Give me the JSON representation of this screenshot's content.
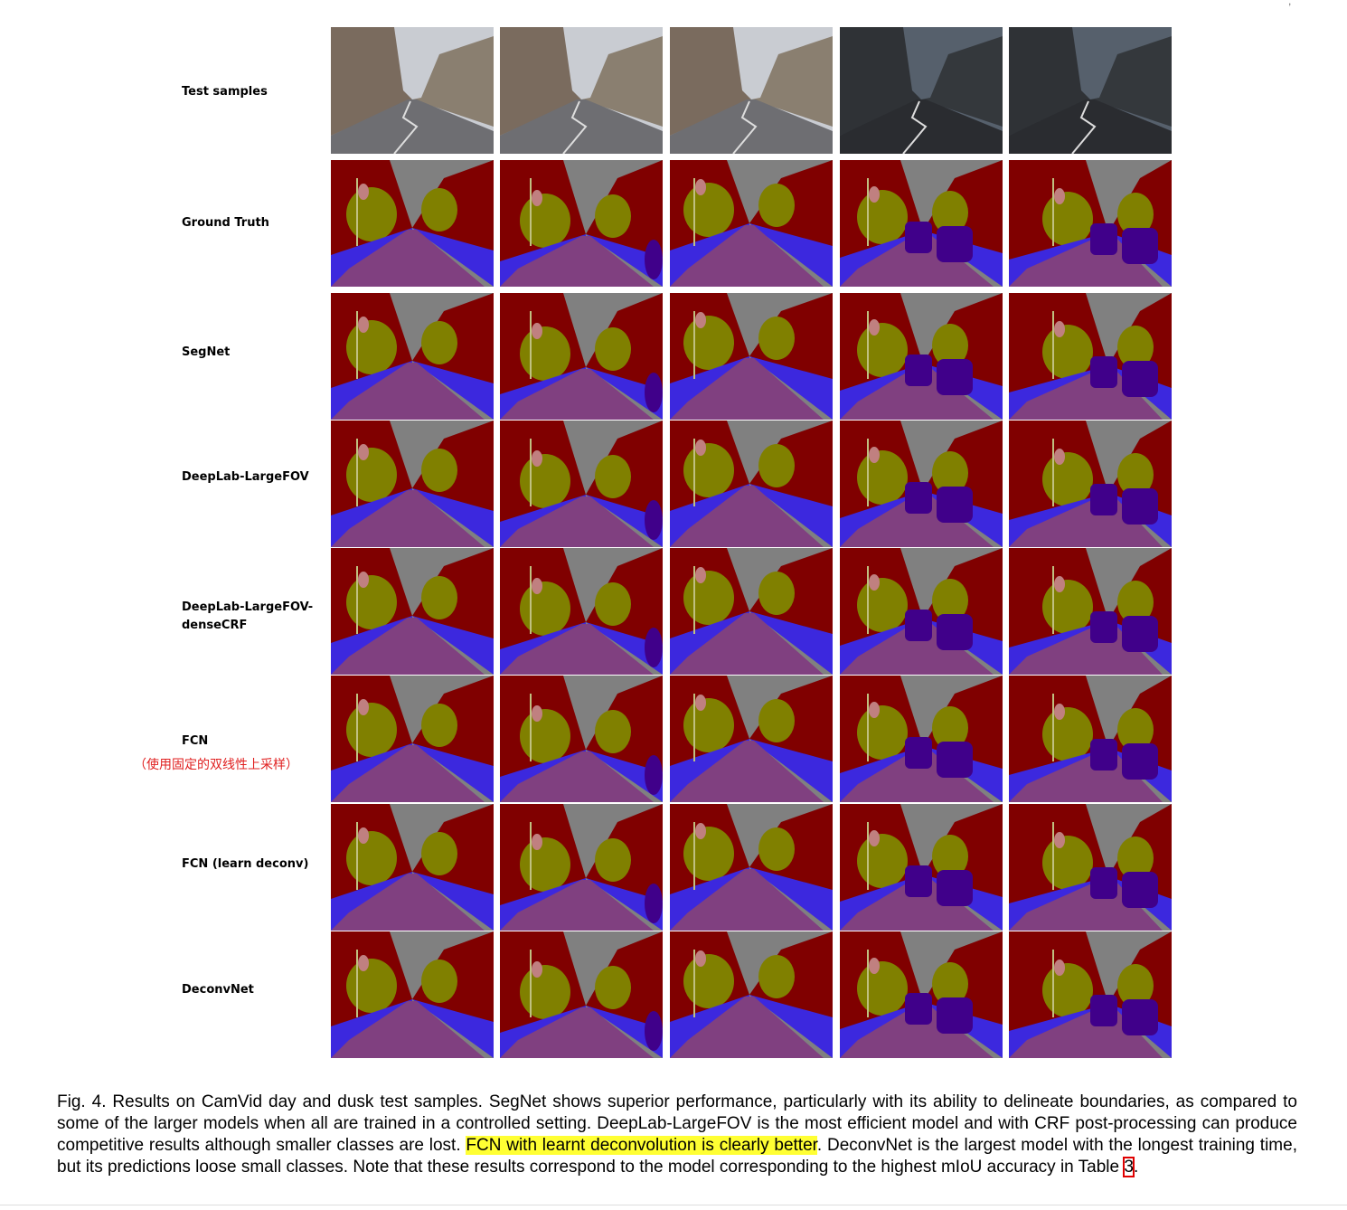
{
  "figure": {
    "rows": [
      {
        "label": "Test samples",
        "kind": "photo"
      },
      {
        "label": "Ground Truth",
        "kind": "seg"
      },
      {
        "label": "SegNet",
        "kind": "seg"
      },
      {
        "label": "DeepLab-LargeFOV",
        "kind": "seg"
      },
      {
        "label": "DeepLab-LargeFOV-\ndenseCRF",
        "kind": "seg"
      },
      {
        "label": "FCN",
        "kind": "seg"
      },
      {
        "label": "FCN (learn deconv)",
        "kind": "seg"
      },
      {
        "label": "DeconvNet",
        "kind": "seg"
      }
    ],
    "annotation": "（使用固定的双线性上采样）",
    "columns": 5,
    "colors": {
      "sky": "#808080",
      "building": "#800000",
      "tree": "#808000",
      "road": "#804080",
      "sidewalk": "#3c28de",
      "car": "#40008a",
      "pole": "#c0c080",
      "sign": "#c08080",
      "pedestrian": "#404000",
      "bicyclist": "#0080c0",
      "fence": "#404080"
    }
  },
  "caption": {
    "part1": "Fig. 4. Results on CamVid day and dusk test samples. SegNet shows superior performance, particularly with its ability to delineate boundaries, as compared to some of the larger models when all are trained in a controlled setting. DeepLab-LargeFOV is the most efficient model and with CRF post-processing can produce competitive results although smaller classes are lost. ",
    "highlight": "FCN with learnt deconvolution is clearly better",
    "part2": ". DeconvNet is the largest model with the longest training time, but its predictions loose small classes. Note that these results correspond to the model corresponding to the highest mIoU accuracy in Table ",
    "table_ref": "3",
    "part3": "."
  }
}
